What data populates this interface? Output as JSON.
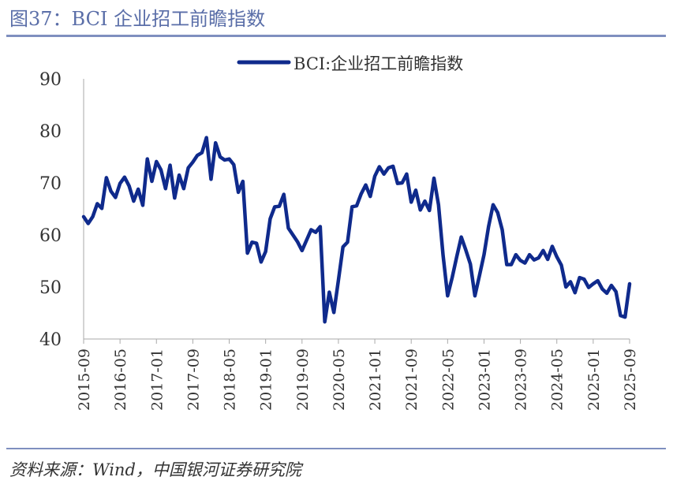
{
  "figure": {
    "title": "图37：BCI 企业招工前瞻指数",
    "source": "资料来源：Wind，中国银河证券研究院"
  },
  "colors": {
    "line": "#0f2a8c",
    "title": "#5a6ea8",
    "rule": "#7f8fbf",
    "axis": "#aaaaaa"
  },
  "chart_data": {
    "type": "line",
    "title": "",
    "xlabel": "",
    "ylabel": "",
    "ylim": [
      40,
      90
    ],
    "yticks": [
      40,
      50,
      60,
      70,
      80,
      90
    ],
    "legend_position": "top-center",
    "x_tick_labels": [
      "2015-09",
      "2016-05",
      "2017-01",
      "2017-09",
      "2018-05",
      "2019-01",
      "2019-09",
      "2020-05",
      "2021-01",
      "2021-09",
      "2022-05",
      "2023-01",
      "2023-09",
      "2024-05",
      "2025-01",
      "2025-09"
    ],
    "x": [
      "2015-09",
      "2015-10",
      "2015-11",
      "2015-12",
      "2016-01",
      "2016-02",
      "2016-03",
      "2016-04",
      "2016-05",
      "2016-06",
      "2016-07",
      "2016-08",
      "2016-09",
      "2016-10",
      "2016-11",
      "2016-12",
      "2017-01",
      "2017-02",
      "2017-03",
      "2017-04",
      "2017-05",
      "2017-06",
      "2017-07",
      "2017-08",
      "2017-09",
      "2017-10",
      "2017-11",
      "2017-12",
      "2018-01",
      "2018-02",
      "2018-03",
      "2018-04",
      "2018-05",
      "2018-06",
      "2018-07",
      "2018-08",
      "2018-09",
      "2018-10",
      "2018-11",
      "2018-12",
      "2019-01",
      "2019-02",
      "2019-03",
      "2019-04",
      "2019-05",
      "2019-06",
      "2019-07",
      "2019-08",
      "2019-09",
      "2019-10",
      "2019-11",
      "2019-12",
      "2020-01",
      "2020-02",
      "2020-03",
      "2020-04",
      "2020-05",
      "2020-06",
      "2020-07",
      "2020-08",
      "2020-09",
      "2020-10",
      "2020-11",
      "2020-12",
      "2021-01",
      "2021-02",
      "2021-03",
      "2021-04",
      "2021-05",
      "2021-06",
      "2021-07",
      "2021-08",
      "2021-09",
      "2021-10",
      "2021-11",
      "2021-12",
      "2022-01",
      "2022-02",
      "2022-03",
      "2022-04",
      "2022-05",
      "2022-06",
      "2022-07",
      "2022-08",
      "2022-09",
      "2022-10",
      "2022-11",
      "2022-12",
      "2023-01",
      "2023-02",
      "2023-03",
      "2023-04",
      "2023-05",
      "2023-06",
      "2023-07",
      "2023-08",
      "2023-09",
      "2023-10",
      "2023-11",
      "2023-12",
      "2024-01",
      "2024-02",
      "2024-03",
      "2024-04",
      "2024-05",
      "2024-06",
      "2024-07",
      "2024-08",
      "2024-09",
      "2024-10",
      "2024-11",
      "2024-12",
      "2025-01",
      "2025-02",
      "2025-03",
      "2025-04",
      "2025-05",
      "2025-06",
      "2025-07",
      "2025-08",
      "2025-09"
    ],
    "series": [
      {
        "name": "BCI:企业招工前瞻指数",
        "values": [
          63.5,
          62.2,
          63.5,
          66.0,
          65.1,
          71.0,
          68.4,
          67.2,
          69.9,
          71.1,
          69.4,
          66.5,
          68.8,
          65.7,
          74.6,
          70.3,
          74.1,
          72.5,
          68.9,
          73.4,
          67.1,
          71.5,
          68.9,
          72.9,
          74.0,
          75.3,
          75.8,
          78.7,
          70.7,
          77.7,
          75.0,
          74.4,
          74.6,
          73.5,
          68.2,
          70.3,
          56.5,
          58.6,
          58.4,
          54.8,
          56.8,
          63.1,
          65.4,
          65.5,
          67.8,
          61.3,
          60.0,
          58.7,
          57.0,
          59.0,
          61.0,
          60.5,
          61.6,
          43.3,
          49.0,
          45.1,
          51.3,
          57.7,
          58.6,
          65.4,
          65.6,
          67.9,
          69.6,
          67.4,
          71.3,
          73.1,
          71.7,
          72.9,
          73.2,
          69.9,
          70.0,
          71.7,
          66.3,
          68.6,
          64.8,
          66.5,
          64.7,
          70.9,
          65.8,
          56.1,
          48.3,
          51.8,
          55.8,
          59.6,
          57.1,
          54.4,
          48.3,
          52.2,
          56.2,
          61.6,
          65.8,
          64.3,
          61.0,
          54.3,
          54.3,
          56.2,
          55.1,
          54.6,
          56.2,
          55.2,
          55.6,
          57.0,
          55.3,
          57.8,
          55.8,
          54.2,
          50.0,
          51.0,
          48.9,
          51.8,
          51.5,
          49.9,
          50.6,
          51.2,
          49.6,
          48.8,
          50.3,
          49.1,
          44.5,
          44.2,
          50.6
        ]
      }
    ]
  }
}
